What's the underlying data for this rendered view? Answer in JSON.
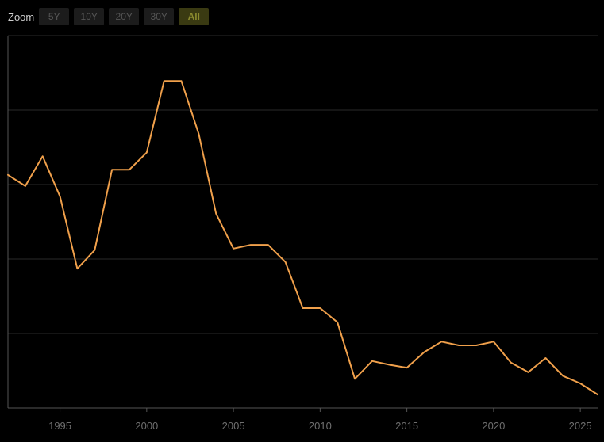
{
  "zoom": {
    "label": "Zoom",
    "buttons": [
      "5Y",
      "10Y",
      "20Y",
      "30Y",
      "All"
    ],
    "active": "All"
  },
  "colors": {
    "background": "#000000",
    "line": "#f0a04b",
    "grid": "#2a2a2a",
    "axis": "#555555"
  },
  "chart_data": {
    "type": "line",
    "title": "",
    "xlabel": "",
    "ylabel": "",
    "grid": true,
    "xlim": [
      1992.0,
      2026.0
    ],
    "ylim": [
      0,
      50
    ],
    "x_ticks": [
      1995,
      2000,
      2005,
      2010,
      2015,
      2020,
      2025
    ],
    "x_tick_labels": [
      "1995",
      "2000",
      "2005",
      "2010",
      "2015",
      "2020",
      "2025"
    ],
    "y_gridlines": [
      10,
      20,
      30,
      40,
      50
    ],
    "series": [
      {
        "x": [
          1992,
          1993,
          1994,
          1995,
          1996,
          1997,
          1998,
          1999,
          2000,
          2001,
          2002,
          2003,
          2004,
          2005,
          2006,
          2007,
          2008,
          2009,
          2010,
          2011,
          2012,
          2013,
          2014,
          2015,
          2016,
          2017,
          2018,
          2019,
          2020,
          2021,
          2022,
          2023,
          2024,
          2025,
          2026
        ],
        "y": [
          31.3,
          29.8,
          33.8,
          28.4,
          18.7,
          21.2,
          32.0,
          32.0,
          34.3,
          43.9,
          43.9,
          36.8,
          26.1,
          21.4,
          21.9,
          21.9,
          19.6,
          13.4,
          13.4,
          11.5,
          3.9,
          6.3,
          5.8,
          5.4,
          7.5,
          8.9,
          8.4,
          8.4,
          8.9,
          6.1,
          4.8,
          6.7,
          4.3,
          3.3,
          1.8
        ]
      }
    ]
  }
}
